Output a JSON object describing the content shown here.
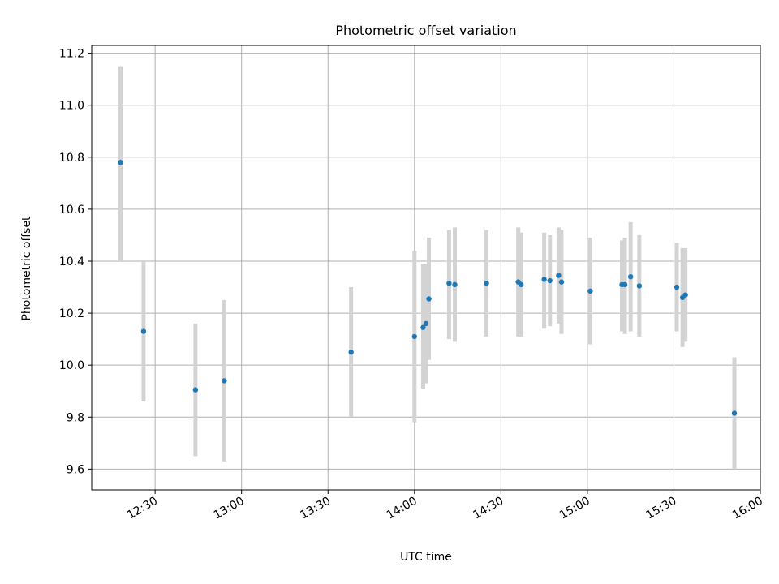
{
  "chart_data": {
    "type": "scatter",
    "title": "Photometric offset variation",
    "xlabel": "UTC time",
    "ylabel": "Photometric offset",
    "xlim": [
      "12:08",
      "16:00"
    ],
    "ylim": [
      9.52,
      11.23
    ],
    "x_ticks": [
      "12:30",
      "13:00",
      "13:30",
      "14:00",
      "14:30",
      "15:00",
      "15:30",
      "16:00"
    ],
    "y_ticks": [
      9.6,
      9.8,
      10.0,
      10.2,
      10.4,
      10.6,
      10.8,
      11.0,
      11.2
    ],
    "grid": true,
    "colors": {
      "points": "#1f77b4",
      "errorbars": "#d3d3d3"
    },
    "points": [
      {
        "x": "12:18",
        "y": 10.78,
        "ymin": 10.4,
        "ymax": 11.15
      },
      {
        "x": "12:26",
        "y": 10.13,
        "ymin": 9.86,
        "ymax": 10.4
      },
      {
        "x": "12:44",
        "y": 9.905,
        "ymin": 9.65,
        "ymax": 10.16
      },
      {
        "x": "12:54",
        "y": 9.94,
        "ymin": 9.63,
        "ymax": 10.25
      },
      {
        "x": "13:38",
        "y": 10.05,
        "ymin": 9.8,
        "ymax": 10.3
      },
      {
        "x": "14:00",
        "y": 10.11,
        "ymin": 9.78,
        "ymax": 10.44
      },
      {
        "x": "14:03",
        "y": 10.145,
        "ymin": 9.91,
        "ymax": 10.39
      },
      {
        "x": "14:04",
        "y": 10.16,
        "ymin": 9.93,
        "ymax": 10.39
      },
      {
        "x": "14:05",
        "y": 10.255,
        "ymin": 10.02,
        "ymax": 10.49
      },
      {
        "x": "14:12",
        "y": 10.315,
        "ymin": 10.1,
        "ymax": 10.52
      },
      {
        "x": "14:14",
        "y": 10.31,
        "ymin": 10.09,
        "ymax": 10.53
      },
      {
        "x": "14:25",
        "y": 10.315,
        "ymin": 10.11,
        "ymax": 10.52
      },
      {
        "x": "14:36",
        "y": 10.32,
        "ymin": 10.11,
        "ymax": 10.53
      },
      {
        "x": "14:37",
        "y": 10.31,
        "ymin": 10.11,
        "ymax": 10.51
      },
      {
        "x": "14:45",
        "y": 10.33,
        "ymin": 10.14,
        "ymax": 10.51
      },
      {
        "x": "14:47",
        "y": 10.325,
        "ymin": 10.15,
        "ymax": 10.5
      },
      {
        "x": "14:50",
        "y": 10.345,
        "ymin": 10.16,
        "ymax": 10.53
      },
      {
        "x": "14:51",
        "y": 10.32,
        "ymin": 10.12,
        "ymax": 10.52
      },
      {
        "x": "15:01",
        "y": 10.285,
        "ymin": 10.08,
        "ymax": 10.49
      },
      {
        "x": "15:12",
        "y": 10.31,
        "ymin": 10.13,
        "ymax": 10.48
      },
      {
        "x": "15:13",
        "y": 10.31,
        "ymin": 10.12,
        "ymax": 10.49
      },
      {
        "x": "15:15",
        "y": 10.34,
        "ymin": 10.13,
        "ymax": 10.55
      },
      {
        "x": "15:18",
        "y": 10.305,
        "ymin": 10.11,
        "ymax": 10.5
      },
      {
        "x": "15:31",
        "y": 10.3,
        "ymin": 10.13,
        "ymax": 10.47
      },
      {
        "x": "15:33",
        "y": 10.26,
        "ymin": 10.07,
        "ymax": 10.45
      },
      {
        "x": "15:34",
        "y": 10.27,
        "ymin": 10.09,
        "ymax": 10.45
      },
      {
        "x": "15:51",
        "y": 9.815,
        "ymin": 9.6,
        "ymax": 10.03
      }
    ]
  }
}
